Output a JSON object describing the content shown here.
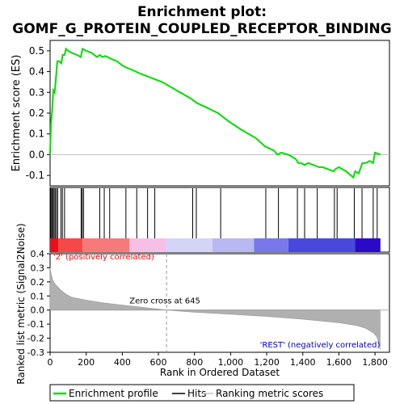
{
  "chart_data": {
    "type": "line",
    "title_line1": "Enrichment plot:",
    "title_line2": "GOMF_G_PROTEIN_COUPLED_RECEPTOR_BINDING",
    "es_panel": {
      "ylabel": "Enrichment score (ES)",
      "ylim": [
        -0.15,
        0.55
      ],
      "yticks": [
        -0.1,
        0.0,
        0.1,
        0.2,
        0.3,
        0.4,
        0.5
      ],
      "ytick_labels": [
        "-0.1",
        "0.0",
        "0.1",
        "0.2",
        "0.3",
        "0.4",
        "0.5"
      ],
      "series": [
        {
          "name": "Enrichment profile",
          "color": "#00dd00",
          "x": [
            0,
            5,
            12,
            18,
            25,
            32,
            40,
            50,
            62,
            70,
            80,
            88,
            100,
            120,
            150,
            170,
            180,
            200,
            230,
            260,
            275,
            290,
            305,
            320,
            340,
            370,
            400,
            420,
            450,
            500,
            560,
            620,
            700,
            780,
            810,
            860,
            930,
            990,
            1060,
            1140,
            1190,
            1240,
            1260,
            1280,
            1320,
            1360,
            1375,
            1390,
            1410,
            1430,
            1460,
            1490,
            1510,
            1540,
            1570,
            1580,
            1600,
            1640,
            1680,
            1690,
            1710,
            1730,
            1750,
            1770,
            1790,
            1800,
            1830
          ],
          "y": [
            0.0,
            0.15,
            0.22,
            0.31,
            0.3,
            0.36,
            0.45,
            0.45,
            0.44,
            0.48,
            0.48,
            0.51,
            0.5,
            0.49,
            0.48,
            0.47,
            0.51,
            0.5,
            0.49,
            0.47,
            0.48,
            0.47,
            0.475,
            0.47,
            0.46,
            0.45,
            0.43,
            0.42,
            0.41,
            0.39,
            0.37,
            0.35,
            0.31,
            0.27,
            0.25,
            0.23,
            0.2,
            0.16,
            0.12,
            0.08,
            0.04,
            0.02,
            0.0,
            0.01,
            0.0,
            -0.02,
            -0.04,
            -0.04,
            -0.05,
            -0.04,
            -0.05,
            -0.06,
            -0.06,
            -0.07,
            -0.08,
            -0.07,
            -0.06,
            -0.08,
            -0.11,
            -0.08,
            -0.09,
            -0.04,
            -0.04,
            -0.03,
            -0.04,
            0.01,
            0.0
          ]
        }
      ]
    },
    "hits": [
      2,
      5,
      10,
      16,
      22,
      28,
      35,
      42,
      60,
      68,
      80,
      172,
      178,
      185,
      275,
      300,
      330,
      420,
      480,
      540,
      580,
      790,
      810,
      945,
      1195,
      1265,
      1370,
      1410,
      1480,
      1575,
      1590,
      1685,
      1728,
      1790,
      1812
    ],
    "metric_panel": {
      "ylabel": "Ranked list metric (Signal2Noise)",
      "xlabel": "Rank in Ordered Dataset",
      "ylim": [
        -0.3,
        0.4
      ],
      "yticks": [
        -0.3,
        -0.2,
        -0.1,
        0.0,
        0.1,
        0.2,
        0.3,
        0.4
      ],
      "ytick_labels": [
        "-0.3",
        "-0.2",
        "-0.1",
        "0.0",
        "0.1",
        "0.2",
        "0.3",
        "0.4"
      ],
      "x": [
        0,
        5,
        15,
        30,
        60,
        90,
        120,
        200,
        300,
        400,
        500,
        645,
        800,
        1000,
        1200,
        1400,
        1600,
        1700,
        1750,
        1790,
        1810,
        1822,
        1828
      ],
      "y": [
        0.3,
        0.26,
        0.21,
        0.18,
        0.14,
        0.11,
        0.09,
        0.07,
        0.05,
        0.035,
        0.02,
        0.0,
        -0.015,
        -0.03,
        -0.045,
        -0.065,
        -0.09,
        -0.11,
        -0.13,
        -0.16,
        -0.19,
        -0.23,
        -0.28
      ],
      "fill_color": "#b0b0b0",
      "zero_cross_label": "Zero cross at 645",
      "zero_cross": 645,
      "pos_label": "'2' (positively correlated)",
      "pos_color": "#ff0000",
      "neg_label": "'REST' (negatively correlated)",
      "neg_color": "#0000cc"
    },
    "x_axis": {
      "xlim": [
        0,
        1880
      ],
      "xticks": [
        0,
        200,
        400,
        600,
        800,
        1000,
        1200,
        1400,
        1600,
        1800
      ],
      "xtick_labels": [
        "0",
        "200",
        "400",
        "600",
        "800",
        "1,000",
        "1,200",
        "1,400",
        "1,600",
        "1,800"
      ],
      "n_genes": 1830
    },
    "colorbar_segments": [
      {
        "start": 0,
        "end": 45,
        "color": "#e8101a"
      },
      {
        "start": 45,
        "end": 180,
        "color": "#f74848"
      },
      {
        "start": 180,
        "end": 440,
        "color": "#f77a7a"
      },
      {
        "start": 440,
        "end": 640,
        "color": "#f8bfe6"
      },
      {
        "start": 640,
        "end": 900,
        "color": "#d4d4f7"
      },
      {
        "start": 900,
        "end": 1130,
        "color": "#b8b8f2"
      },
      {
        "start": 1130,
        "end": 1320,
        "color": "#7878ec"
      },
      {
        "start": 1320,
        "end": 1690,
        "color": "#4848dc"
      },
      {
        "start": 1690,
        "end": 1830,
        "color": "#2a0ac8"
      }
    ],
    "legend": {
      "items": [
        {
          "label": "Enrichment profile",
          "color": "#00dd00"
        },
        {
          "label": "Hits",
          "color": "#000000"
        },
        {
          "label": "Ranking metric scores",
          "color": "#c0c0c0"
        }
      ]
    }
  }
}
